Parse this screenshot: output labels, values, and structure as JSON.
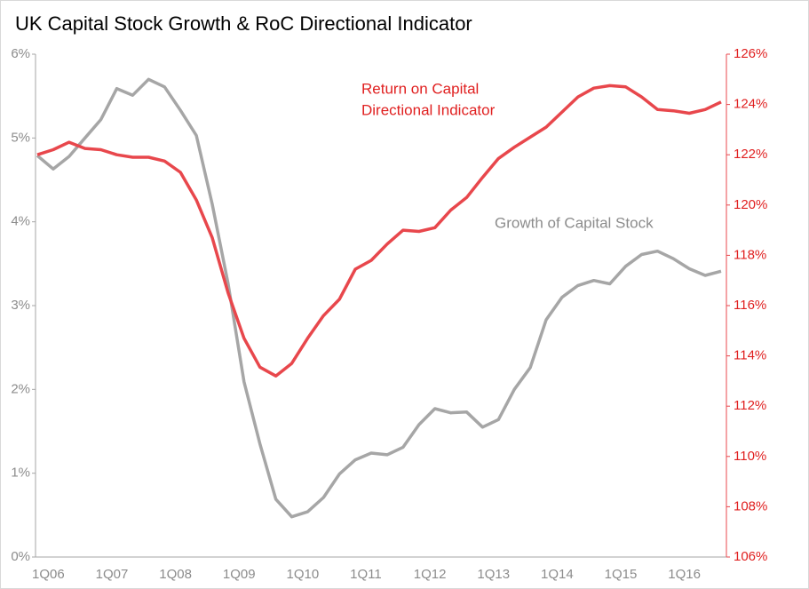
{
  "chart_data": {
    "type": "line",
    "title": "UK Capital Stock Growth & RoC Directional Indicator",
    "categories": [
      "1Q06",
      null,
      null,
      null,
      "1Q07",
      null,
      null,
      null,
      "1Q08",
      null,
      null,
      null,
      "1Q09",
      null,
      null,
      null,
      "1Q10",
      null,
      null,
      null,
      "1Q11",
      null,
      null,
      null,
      "1Q12",
      null,
      null,
      null,
      "1Q13",
      null,
      null,
      null,
      "1Q14",
      null,
      null,
      null,
      "1Q15",
      null,
      null,
      null,
      "1Q16",
      null,
      null,
      null
    ],
    "series": [
      {
        "name": "Growth of Capital Stock",
        "color": "#a6a6a6",
        "axis": "y",
        "values": [
          4.79,
          4.63,
          4.78,
          5.0,
          5.22,
          5.59,
          5.51,
          5.7,
          5.61,
          5.33,
          5.03,
          4.21,
          3.26,
          2.09,
          1.35,
          0.69,
          0.48,
          0.54,
          0.71,
          0.99,
          1.16,
          1.24,
          1.22,
          1.31,
          1.58,
          1.77,
          1.72,
          1.73,
          1.55,
          1.64,
          2.0,
          2.26,
          2.83,
          3.1,
          3.24,
          3.3,
          3.26,
          3.47,
          3.61,
          3.65,
          3.56,
          3.44,
          3.36,
          3.41
        ]
      },
      {
        "name": [
          "Return on Capital",
          "Directional Indicator"
        ],
        "color": "#e8474c",
        "axis": "y2",
        "values": [
          122.0,
          122.2,
          122.5,
          122.25,
          122.2,
          122.0,
          121.9,
          121.9,
          121.75,
          121.3,
          120.2,
          118.7,
          116.5,
          114.7,
          113.55,
          113.2,
          113.7,
          114.7,
          115.6,
          116.25,
          117.45,
          117.8,
          118.45,
          119.0,
          118.95,
          119.1,
          119.8,
          120.3,
          121.1,
          121.85,
          122.3,
          122.7,
          123.1,
          123.7,
          124.3,
          124.65,
          124.75,
          124.7,
          124.3,
          123.8,
          123.75,
          123.65,
          123.8,
          124.1
        ]
      }
    ],
    "ylim": [
      0,
      6
    ],
    "yticks": [
      {
        "value": 0,
        "label": "0%"
      },
      {
        "value": 1,
        "label": "1%"
      },
      {
        "value": 2,
        "label": "2%"
      },
      {
        "value": 3,
        "label": "3%"
      },
      {
        "value": 4,
        "label": "4%"
      },
      {
        "value": 5,
        "label": "5%"
      },
      {
        "value": 6,
        "label": "6%"
      }
    ],
    "y2lim": [
      106,
      126
    ],
    "y2ticks": [
      {
        "value": 106,
        "label": "106%"
      },
      {
        "value": 108,
        "label": "108%"
      },
      {
        "value": 110,
        "label": "110%"
      },
      {
        "value": 112,
        "label": "112%"
      },
      {
        "value": 114,
        "label": "114%"
      },
      {
        "value": 116,
        "label": "116%"
      },
      {
        "value": 118,
        "label": "118%"
      },
      {
        "value": 120,
        "label": "120%"
      },
      {
        "value": 122,
        "label": "122%"
      },
      {
        "value": 124,
        "label": "124%"
      },
      {
        "value": 126,
        "label": "126%"
      }
    ],
    "grid": false
  }
}
